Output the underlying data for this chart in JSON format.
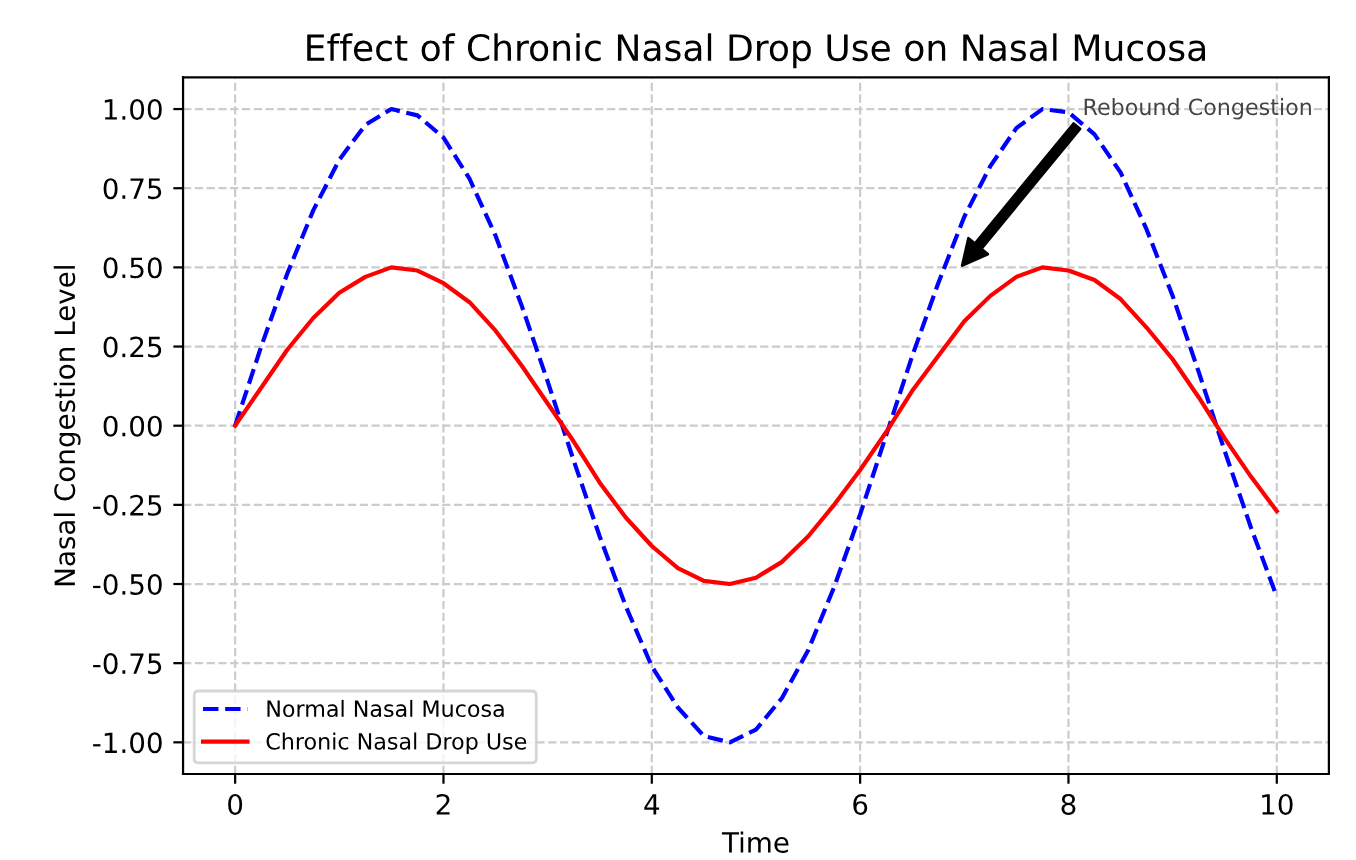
{
  "chart_data": {
    "type": "line",
    "title": "Effect of Chronic Nasal Drop Use on Nasal Mucosa",
    "xlabel": "Time",
    "ylabel": "Nasal Congestion Level",
    "x": [
      0,
      0.25,
      0.5,
      0.75,
      1,
      1.25,
      1.5,
      1.75,
      2,
      2.25,
      2.5,
      2.75,
      3,
      3.25,
      3.5,
      3.75,
      4,
      4.25,
      4.5,
      4.75,
      5,
      5.25,
      5.5,
      5.75,
      6,
      6.25,
      6.5,
      6.75,
      7,
      7.25,
      7.5,
      7.75,
      8,
      8.25,
      8.5,
      8.75,
      9,
      9.25,
      9.5,
      9.75,
      10
    ],
    "series": [
      {
        "name": "Normal Nasal Mucosa",
        "color": "#0000ff",
        "line_style": "dashed",
        "values": [
          0,
          0.25,
          0.48,
          0.68,
          0.84,
          0.95,
          1.0,
          0.98,
          0.91,
          0.78,
          0.6,
          0.38,
          0.14,
          -0.11,
          -0.35,
          -0.57,
          -0.76,
          -0.89,
          -0.98,
          -1.0,
          -0.96,
          -0.86,
          -0.71,
          -0.51,
          -0.28,
          -0.03,
          0.22,
          0.45,
          0.66,
          0.82,
          0.94,
          1.0,
          0.99,
          0.92,
          0.8,
          0.62,
          0.41,
          0.17,
          -0.08,
          -0.32,
          -0.54
        ]
      },
      {
        "name": "Chronic Nasal Drop Use",
        "color": "#ff0000",
        "line_style": "solid",
        "values": [
          0,
          0.12,
          0.24,
          0.34,
          0.42,
          0.47,
          0.5,
          0.49,
          0.45,
          0.39,
          0.3,
          0.19,
          0.07,
          -0.05,
          -0.18,
          -0.29,
          -0.38,
          -0.45,
          -0.49,
          -0.5,
          -0.48,
          -0.43,
          -0.35,
          -0.25,
          -0.14,
          -0.02,
          0.11,
          0.22,
          0.33,
          0.41,
          0.47,
          0.5,
          0.49,
          0.46,
          0.4,
          0.31,
          0.21,
          0.09,
          -0.04,
          -0.16,
          -0.27
        ]
      }
    ],
    "xlim": [
      -0.5,
      10.5
    ],
    "ylim": [
      -1.1,
      1.1
    ],
    "xticks": [
      0,
      2,
      4,
      6,
      8,
      10
    ],
    "yticks": [
      {
        "value": -1,
        "label": "-1.00"
      },
      {
        "value": -0.75,
        "label": "-0.75"
      },
      {
        "value": -0.5,
        "label": "-0.50"
      },
      {
        "value": -0.25,
        "label": "-0.25"
      },
      {
        "value": 0,
        "label": "0.00"
      },
      {
        "value": 0.25,
        "label": "0.25"
      },
      {
        "value": 0.5,
        "label": "0.50"
      },
      {
        "value": 0.75,
        "label": "0.75"
      },
      {
        "value": 1,
        "label": "1.00"
      }
    ],
    "annotations": [
      "Rebound Congestion"
    ],
    "grid": true,
    "legend": "bottom left",
    "marker": "none"
  }
}
